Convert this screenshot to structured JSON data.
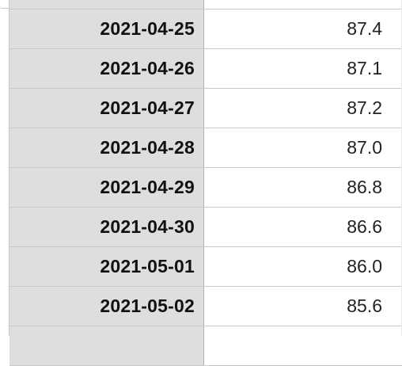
{
  "sheet": {
    "rows": [
      {
        "date": "2021-04-25",
        "value": "87.4"
      },
      {
        "date": "2021-04-26",
        "value": "87.1"
      },
      {
        "date": "2021-04-27",
        "value": "87.2"
      },
      {
        "date": "2021-04-28",
        "value": "87.0"
      },
      {
        "date": "2021-04-29",
        "value": "86.8"
      },
      {
        "date": "2021-04-30",
        "value": "86.6"
      },
      {
        "date": "2021-05-01",
        "value": "86.0"
      },
      {
        "date": "2021-05-02",
        "value": "85.6"
      }
    ]
  },
  "colors": {
    "header_fill": "#dedede",
    "grid_line": "#c8c8c8",
    "cell_fill": "#ffffff"
  }
}
